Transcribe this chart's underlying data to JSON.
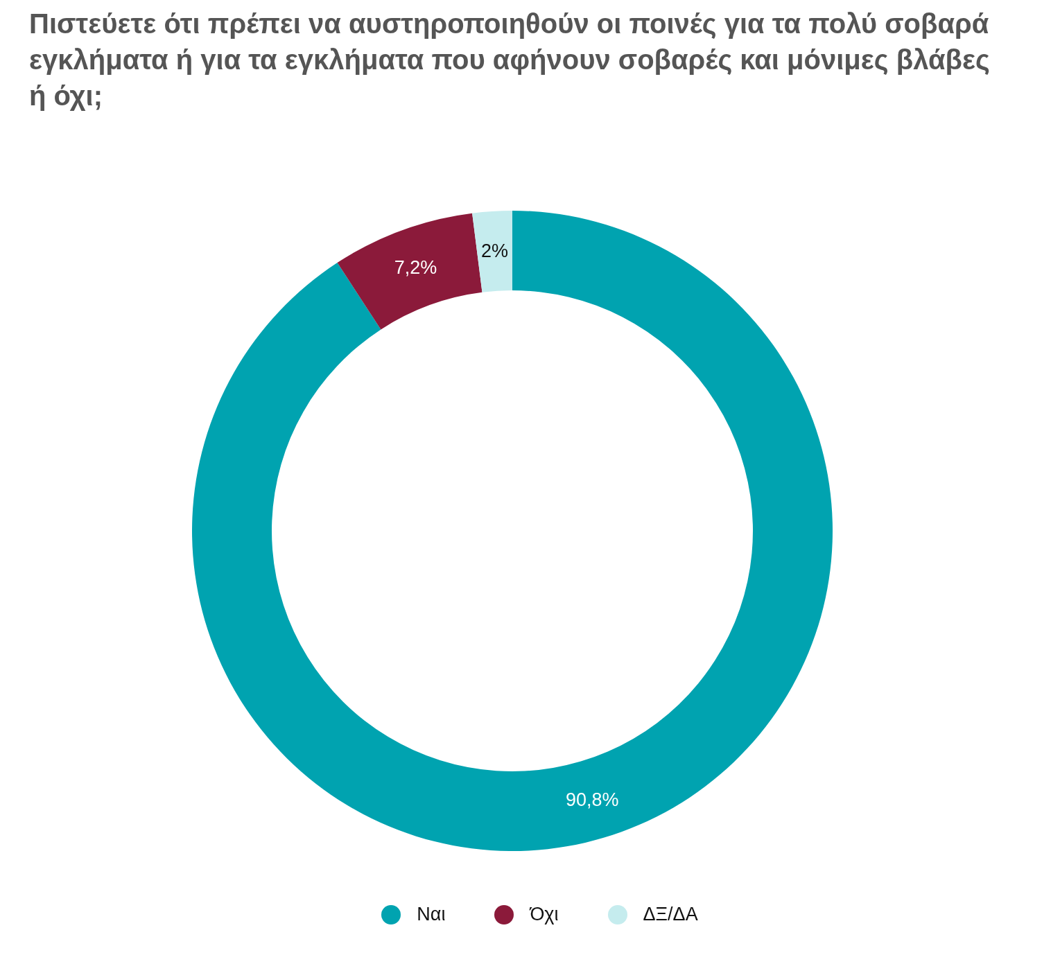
{
  "chart_data": {
    "type": "donut",
    "title": "Πιστεύετε ότι πρέπει να αυστηροποιηθούν οι ποινές για τα πολύ σοβαρά εγκλήματα ή για τα εγκλήματα που αφήνουν σοβαρές και μόνιμες βλάβες ή όχι;",
    "categories": [
      "Ναι",
      "Όχι",
      "ΔΞ/ΔΑ"
    ],
    "values": [
      90.8,
      7.2,
      2
    ],
    "value_labels": [
      "90,8%",
      "7,2%",
      "2%"
    ],
    "colors": [
      "#00a3b0",
      "#8b1a3a",
      "#c5ecee"
    ],
    "legend": "bottom"
  }
}
